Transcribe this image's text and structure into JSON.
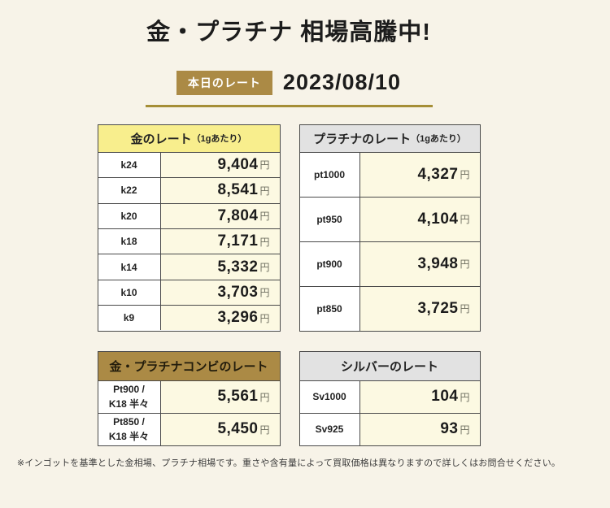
{
  "header": {
    "title": "金・プラチナ 相場高騰中!",
    "badge_label": "本日のレート",
    "date": "2023/08/10"
  },
  "footnote": "※インゴットを基準とした金相場、プラチナ相場です。重さや含有量によって買取価格は異なりますので詳しくはお問合せください。",
  "colors": {
    "background": "#f7f3e8",
    "accent_gold": "#ab8a45",
    "underline_gold": "#a58e36",
    "gold_header_bg": "#f8ee8d",
    "gray_header_bg": "#e2e2e2",
    "value_cell_bg": "#fcf9e2",
    "table_border": "#4a4a4a",
    "badge_text": "#ffffff",
    "main_text": "#1c1c1c"
  },
  "chart_data": [
    {
      "type": "table",
      "name": "gold-rates",
      "title": "金のレート",
      "title_note": "（1gあたり）",
      "unit": "円",
      "labels": [
        "k24",
        "k22",
        "k20",
        "k18",
        "k14",
        "k10",
        "k9"
      ],
      "values": [
        9404,
        8541,
        7804,
        7171,
        5332,
        3703,
        3296
      ],
      "rows": [
        {
          "label": "k24",
          "value": "9,404"
        },
        {
          "label": "k22",
          "value": "8,541"
        },
        {
          "label": "k20",
          "value": "7,804"
        },
        {
          "label": "k18",
          "value": "7,171"
        },
        {
          "label": "k14",
          "value": "5,332"
        },
        {
          "label": "k10",
          "value": "3,703"
        },
        {
          "label": "k9",
          "value": "3,296"
        }
      ]
    },
    {
      "type": "table",
      "name": "platinum-rates",
      "title": "プラチナのレート",
      "title_note": "（1gあたり）",
      "unit": "円",
      "labels": [
        "pt1000",
        "pt950",
        "pt900",
        "pt850"
      ],
      "values": [
        4327,
        4104,
        3948,
        3725
      ],
      "rows": [
        {
          "label": "pt1000",
          "value": "4,327"
        },
        {
          "label": "pt950",
          "value": "4,104"
        },
        {
          "label": "pt900",
          "value": "3,948"
        },
        {
          "label": "pt850",
          "value": "3,725"
        }
      ]
    },
    {
      "type": "table",
      "name": "gold-platinum-combo-rates",
      "title": "金・プラチナコンビのレート",
      "unit": "円",
      "labels": [
        "Pt900 / K18 半々",
        "Pt850 / K18 半々"
      ],
      "values": [
        5561,
        5450
      ],
      "rows": [
        {
          "label": "Pt900 /\nK18 半々",
          "value": "5,561"
        },
        {
          "label": "Pt850 /\nK18 半々",
          "value": "5,450"
        }
      ]
    },
    {
      "type": "table",
      "name": "silver-rates",
      "title": "シルバーのレート",
      "unit": "円",
      "labels": [
        "Sv1000",
        "Sv925"
      ],
      "values": [
        104,
        93
      ],
      "rows": [
        {
          "label": "Sv1000",
          "value": "104"
        },
        {
          "label": "Sv925",
          "value": "93"
        }
      ]
    }
  ]
}
